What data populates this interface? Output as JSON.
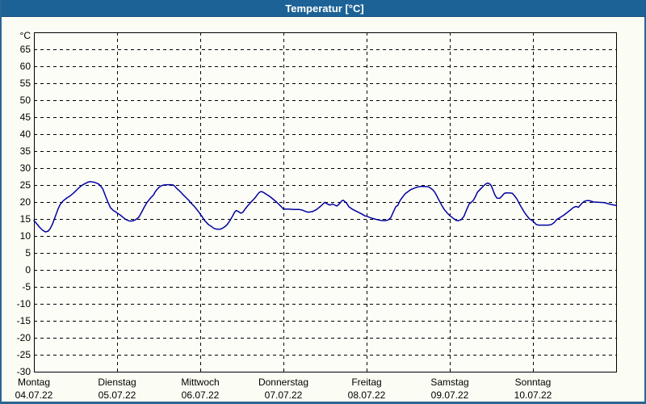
{
  "window": {
    "title": "Temperatur [°C]"
  },
  "colors": {
    "titlebar_bg": "#1d6296",
    "titlebar_text": "#ffffff",
    "window_border": "#2a6694",
    "background": "#fbfcf4",
    "plot_background": "#fdfdf8",
    "gridline": "#000000",
    "axis_text": "#000000",
    "series_line": "#0000a0"
  },
  "chart_data": {
    "type": "line",
    "title": "Temperatur [°C]",
    "y_unit_label": "°C",
    "ylabel": "",
    "xlabel": "",
    "legend_position": "none",
    "grid": {
      "horizontal": "dashed",
      "vertical": "dashed-at-day-boundaries"
    },
    "y_axis": {
      "min": -30,
      "max": 70,
      "tick_step": 5,
      "tick_labels": [
        65,
        60,
        55,
        50,
        45,
        40,
        35,
        30,
        25,
        20,
        15,
        10,
        5,
        0,
        -5,
        -10,
        -15,
        -20,
        -25,
        -30
      ]
    },
    "x_axis": {
      "unit": "hours",
      "range": [
        0,
        168
      ],
      "day_width_hours": 24,
      "days": [
        {
          "weekday": "Montag",
          "date": "04.07.22"
        },
        {
          "weekday": "Dienstag",
          "date": "05.07.22"
        },
        {
          "weekday": "Mittwoch",
          "date": "06.07.22"
        },
        {
          "weekday": "Donnerstag",
          "date": "07.07.22"
        },
        {
          "weekday": "Freitag",
          "date": "08.07.22"
        },
        {
          "weekday": "Samstag",
          "date": "09.07.22"
        },
        {
          "weekday": "Sonntag",
          "date": "10.07.22"
        }
      ]
    },
    "series": [
      {
        "name": "Temperatur",
        "color": "#0000a0",
        "points_hour_degC": [
          [
            0,
            14.6
          ],
          [
            0.8,
            13.6
          ],
          [
            1.6,
            12.6
          ],
          [
            2.5,
            11.7
          ],
          [
            3.3,
            11.2
          ],
          [
            4.1,
            11.4
          ],
          [
            4.7,
            12.2
          ],
          [
            5.4,
            13.6
          ],
          [
            6.2,
            15.8
          ],
          [
            7,
            18
          ],
          [
            7.6,
            19.3
          ],
          [
            8.4,
            20.3
          ],
          [
            9.5,
            21.2
          ],
          [
            10.6,
            21.9
          ],
          [
            11.7,
            22.9
          ],
          [
            12.7,
            23.9
          ],
          [
            13.7,
            24.8
          ],
          [
            14.7,
            25.4
          ],
          [
            15.7,
            25.9
          ],
          [
            16.4,
            26
          ],
          [
            17.4,
            25.8
          ],
          [
            18.3,
            25.5
          ],
          [
            18.8,
            25.2
          ],
          [
            19.4,
            24.5
          ],
          [
            19.9,
            23.8
          ],
          [
            20.6,
            21.9
          ],
          [
            21.4,
            19.9
          ],
          [
            22.1,
            18.3
          ],
          [
            22.9,
            17.5
          ],
          [
            23.6,
            17.1
          ],
          [
            24.1,
            16.7
          ],
          [
            25,
            16.1
          ],
          [
            25.8,
            15.4
          ],
          [
            26.6,
            14.8
          ],
          [
            27.5,
            14.4
          ],
          [
            28.4,
            14.4
          ],
          [
            29.2,
            14.7
          ],
          [
            30.2,
            15.4
          ],
          [
            31,
            16.8
          ],
          [
            31.9,
            18.6
          ],
          [
            32.6,
            19.8
          ],
          [
            33.5,
            21
          ],
          [
            34.5,
            22.1
          ],
          [
            35,
            23
          ],
          [
            35.5,
            23.7
          ],
          [
            36.1,
            24.3
          ],
          [
            36.8,
            24.8
          ],
          [
            37.5,
            25
          ],
          [
            38.5,
            25.1
          ],
          [
            39.5,
            25.1
          ],
          [
            40.2,
            25
          ],
          [
            40.7,
            24.6
          ],
          [
            41.2,
            24
          ],
          [
            42.1,
            23.2
          ],
          [
            43.1,
            22.1
          ],
          [
            44,
            21.2
          ],
          [
            44.7,
            20.5
          ],
          [
            45.4,
            19.6
          ],
          [
            46.2,
            18.8
          ],
          [
            47,
            17.8
          ],
          [
            47.6,
            17
          ],
          [
            48,
            16.4
          ],
          [
            48.6,
            15.6
          ],
          [
            49.2,
            14.6
          ],
          [
            50.3,
            13.4
          ],
          [
            51.2,
            12.8
          ],
          [
            52,
            12.2
          ],
          [
            52.8,
            12
          ],
          [
            53.8,
            12
          ],
          [
            54.5,
            12.3
          ],
          [
            55.2,
            12.8
          ],
          [
            55.8,
            13.4
          ],
          [
            56.6,
            14.6
          ],
          [
            57.3,
            15.8
          ],
          [
            57.9,
            17
          ],
          [
            58.4,
            17.5
          ],
          [
            59,
            17.2
          ],
          [
            59.7,
            16.7
          ],
          [
            60.3,
            17
          ],
          [
            61,
            18
          ],
          [
            61.7,
            18.9
          ],
          [
            62.5,
            19.8
          ],
          [
            63.3,
            20.7
          ],
          [
            64,
            21.5
          ],
          [
            64.5,
            22.2
          ],
          [
            65,
            22.8
          ],
          [
            65.6,
            23.1
          ],
          [
            66.3,
            22.8
          ],
          [
            67,
            22.3
          ],
          [
            67.8,
            21.8
          ],
          [
            68.6,
            21.2
          ],
          [
            69.3,
            20.6
          ],
          [
            70,
            20
          ],
          [
            70.9,
            19.1
          ],
          [
            71.5,
            18.5
          ],
          [
            72,
            17.9
          ],
          [
            73.5,
            17.9
          ],
          [
            75,
            17.8
          ],
          [
            76.5,
            17.8
          ],
          [
            77.5,
            17.6
          ],
          [
            78.4,
            17.2
          ],
          [
            79.2,
            17
          ],
          [
            80.4,
            17.2
          ],
          [
            81.6,
            17.8
          ],
          [
            82.8,
            18.8
          ],
          [
            83.9,
            19.9
          ],
          [
            84.7,
            19.4
          ],
          [
            85.4,
            19.1
          ],
          [
            86.2,
            19.4
          ],
          [
            87.4,
            18.8
          ],
          [
            88.1,
            19.4
          ],
          [
            88.9,
            20.4
          ],
          [
            89.3,
            20.5
          ],
          [
            90.1,
            19.8
          ],
          [
            90.9,
            18.6
          ],
          [
            92,
            17.8
          ],
          [
            93.2,
            17.2
          ],
          [
            94.4,
            16.6
          ],
          [
            95.5,
            15.9
          ],
          [
            96,
            15.8
          ],
          [
            97,
            15.4
          ],
          [
            98,
            15.1
          ],
          [
            99,
            14.8
          ],
          [
            100,
            14.6
          ],
          [
            101.3,
            14.5
          ],
          [
            102.2,
            14.7
          ],
          [
            103,
            15.4
          ],
          [
            103.7,
            17
          ],
          [
            104.4,
            18.6
          ],
          [
            105,
            19
          ],
          [
            105.7,
            20.5
          ],
          [
            106.4,
            21.5
          ],
          [
            107.2,
            22.5
          ],
          [
            108,
            23.1
          ],
          [
            108.8,
            23.7
          ],
          [
            109.6,
            24
          ],
          [
            110.3,
            24.3
          ],
          [
            111.5,
            24.6
          ],
          [
            112.6,
            24.6
          ],
          [
            113.8,
            24.5
          ],
          [
            114.4,
            24.1
          ],
          [
            115,
            23.7
          ],
          [
            115.6,
            23
          ],
          [
            116.1,
            22.1
          ],
          [
            116.9,
            20.5
          ],
          [
            117.7,
            19
          ],
          [
            118.4,
            17.8
          ],
          [
            119.2,
            16.8
          ],
          [
            120,
            16
          ],
          [
            121,
            15.2
          ],
          [
            121.8,
            14.6
          ],
          [
            122.5,
            14.5
          ],
          [
            123.3,
            14.8
          ],
          [
            124.1,
            15.8
          ],
          [
            124.9,
            17.8
          ],
          [
            125.6,
            19.4
          ],
          [
            126.4,
            20.1
          ],
          [
            126.8,
            20.5
          ],
          [
            127.4,
            21.6
          ],
          [
            128,
            22.9
          ],
          [
            129.1,
            24.1
          ],
          [
            129.9,
            24.9
          ],
          [
            130.5,
            25.4
          ],
          [
            131,
            25.6
          ],
          [
            131.5,
            25.3
          ],
          [
            131.9,
            24.9
          ],
          [
            132.3,
            24
          ],
          [
            132.7,
            22.9
          ],
          [
            133.1,
            21.9
          ],
          [
            133.7,
            21.1
          ],
          [
            134.4,
            21.1
          ],
          [
            135,
            21.7
          ],
          [
            135.7,
            22.5
          ],
          [
            136.2,
            22.7
          ],
          [
            137,
            22.7
          ],
          [
            138,
            22.6
          ],
          [
            138.8,
            21.7
          ],
          [
            139.4,
            20.8
          ],
          [
            139.9,
            19.8
          ],
          [
            140.7,
            18.4
          ],
          [
            141.5,
            17
          ],
          [
            142.2,
            16
          ],
          [
            143,
            15
          ],
          [
            144,
            14.4
          ],
          [
            144.9,
            13.4
          ],
          [
            145.6,
            13.2
          ],
          [
            147,
            13.2
          ],
          [
            148.5,
            13.2
          ],
          [
            149.4,
            13.4
          ],
          [
            150.2,
            14
          ],
          [
            150.8,
            14.8
          ],
          [
            151.8,
            15.4
          ],
          [
            153,
            16.2
          ],
          [
            154.5,
            17.4
          ],
          [
            155.7,
            18.4
          ],
          [
            156.5,
            18.7
          ],
          [
            157.1,
            18.4
          ],
          [
            158,
            19.5
          ],
          [
            158.8,
            20.2
          ],
          [
            159.6,
            20.4
          ],
          [
            160.3,
            20.4
          ],
          [
            161.5,
            20
          ],
          [
            163,
            19.9
          ],
          [
            164.6,
            19.8
          ],
          [
            165.7,
            19.5
          ],
          [
            166.9,
            19.2
          ],
          [
            168,
            19
          ]
        ]
      }
    ]
  }
}
